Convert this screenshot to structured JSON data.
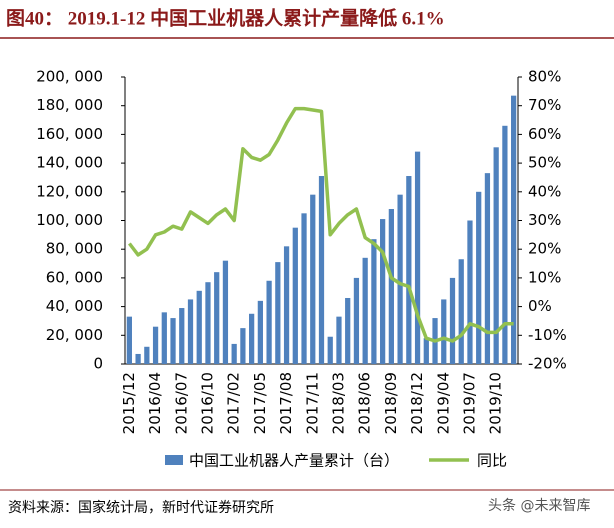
{
  "chart_data": {
    "type": "bar_line",
    "title": "图40：  2019.1-12 中国工业机器人累计产量降低 6.1%",
    "source": "资料来源：国家统计局，新时代证券研究所",
    "watermark": "头条 @未来智库",
    "categories": [
      "2015/12",
      null,
      null,
      "2016/04",
      null,
      null,
      "2016/07",
      null,
      null,
      "2016/10",
      null,
      null,
      "2017/02",
      null,
      null,
      "2017/05",
      null,
      null,
      "2017/08",
      null,
      null,
      "2017/11",
      null,
      null,
      "2018/03",
      null,
      null,
      "2018/06",
      null,
      null,
      "2018/09",
      null,
      null,
      "2018/12",
      null,
      null,
      "2019/04",
      null,
      null,
      "2019/07",
      null,
      null,
      "2019/10",
      null,
      null
    ],
    "series": [
      {
        "name": "中国工业机器人产量累计（台）",
        "color": "#4f81bd",
        "type": "bar",
        "values": [
          33000,
          7000,
          12000,
          26000,
          36000,
          32000,
          39000,
          45000,
          51000,
          57000,
          64000,
          72000,
          14000,
          25000,
          35000,
          44000,
          58000,
          71000,
          82000,
          95000,
          105000,
          118000,
          131000,
          19000,
          33000,
          46000,
          60000,
          74000,
          87000,
          101000,
          108000,
          118000,
          131000,
          148000,
          18000,
          32000,
          45000,
          60000,
          73000,
          100000,
          120000,
          133000,
          151000,
          166000,
          187000
        ]
      },
      {
        "name": "同比",
        "color": "#92c050",
        "type": "line",
        "axis": "y2",
        "values": [
          22,
          18,
          20,
          25,
          26,
          28,
          27,
          33,
          31,
          29,
          32,
          34,
          30,
          55,
          52,
          51,
          53,
          58,
          64,
          69,
          69,
          68.5,
          68,
          25,
          29,
          32,
          34,
          24,
          22,
          19,
          10,
          8,
          7,
          -3,
          -11,
          -12,
          -11,
          -12,
          -10,
          -6,
          -7,
          -9,
          -9,
          -6,
          -6
        ]
      }
    ],
    "ylim": [
      0,
      200000
    ],
    "yticks": [
      0,
      {
        "value": 20000,
        "label": "20, 000"
      },
      {
        "value": 40000,
        "label": "40, 000"
      },
      {
        "value": 60000,
        "label": "60, 000"
      },
      {
        "value": 80000,
        "label": "80, 000"
      },
      {
        "value": 100000,
        "label": "100, 000"
      },
      {
        "value": 120000,
        "label": "120, 000"
      },
      {
        "value": 140000,
        "label": "140, 000"
      },
      {
        "value": 160000,
        "label": "160, 000"
      },
      {
        "value": 180000,
        "label": "180, 000"
      },
      {
        "value": 200000,
        "label": "200, 000"
      }
    ],
    "y2lim": [
      -20,
      80
    ],
    "y2ticks": [
      {
        "value": -20,
        "label": "-20%"
      },
      {
        "value": -10,
        "label": "-10%"
      },
      {
        "value": 0,
        "label": "0%"
      },
      {
        "value": 10,
        "label": "10%"
      },
      {
        "value": 20,
        "label": "20%"
      },
      {
        "value": 30,
        "label": "30%"
      },
      {
        "value": 40,
        "label": "40%"
      },
      {
        "value": 50,
        "label": "50%"
      },
      {
        "value": 60,
        "label": "60%"
      },
      {
        "value": 70,
        "label": "70%"
      },
      {
        "value": 80,
        "label": "80%"
      }
    ],
    "grid": false
  }
}
